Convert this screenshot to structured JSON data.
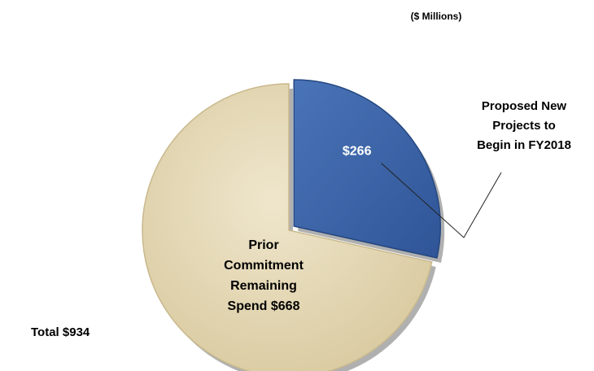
{
  "chart_data": {
    "type": "pie",
    "subtitle": "($ Millions)",
    "total_label": "Total $934",
    "slices": [
      {
        "name": "Proposed New Projects to Begin in FY2018",
        "value": 266,
        "label_lines": [
          "Proposed New",
          "Projects to",
          "Begin in FY2018"
        ],
        "value_label": "$266",
        "color": "#3d64a8",
        "exploded": true
      },
      {
        "name": "Prior Commitment Remaining Spend $668",
        "value": 668,
        "label_lines": [
          "Prior",
          "Commitment",
          "Remaining",
          "Spend $668"
        ],
        "color": "#e3d6b2",
        "exploded": false
      }
    ]
  }
}
